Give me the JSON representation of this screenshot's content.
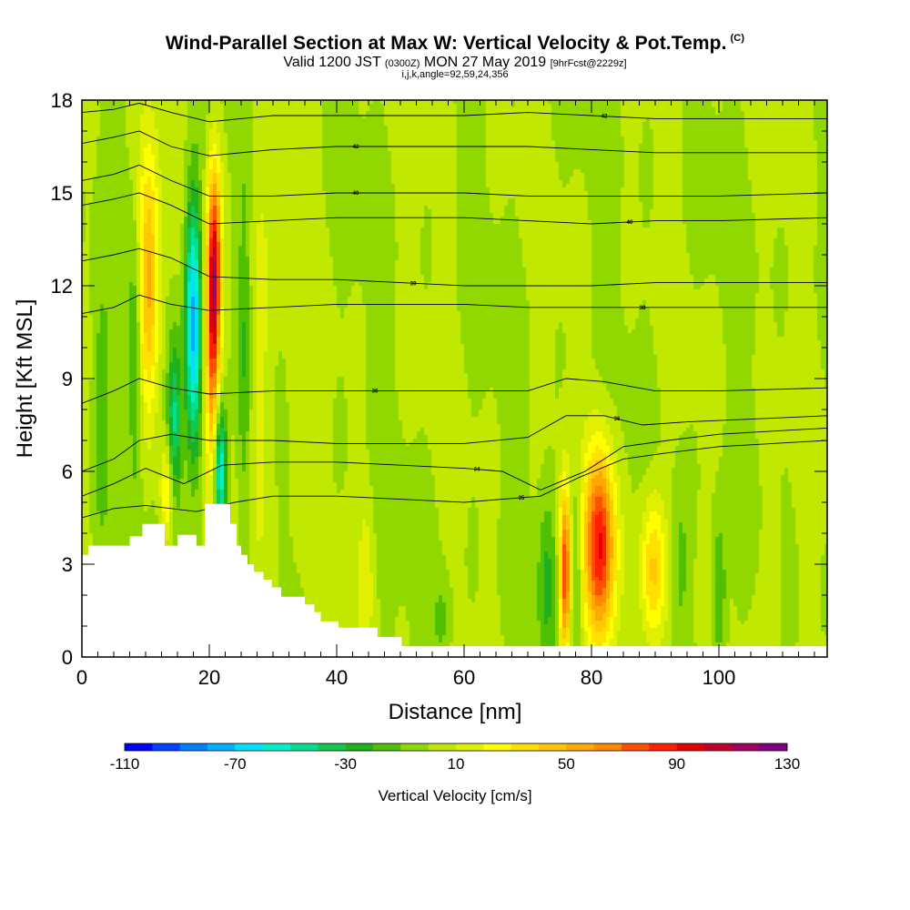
{
  "header": {
    "title": "Wind-Parallel Section at Max W: Vertical Velocity & Pot.Temp.",
    "title_unit": "(C)",
    "sub_valid": "Valid 1200 JST",
    "sub_utc": "(0300Z)",
    "sub_date": "MON 27 May 2019",
    "sub_fcst": "[9hrFcst@2229z]",
    "ijk": "i,j,k,angle=92,59,24,356"
  },
  "chart_data": {
    "type": "heatmap",
    "title": "Wind-Parallel Section at Max W: Vertical Velocity & Pot.Temp.",
    "xlabel": "Distance [nm]",
    "ylabel": "Height [Kft MSL]",
    "xlim": [
      0,
      117
    ],
    "ylim": [
      0,
      18
    ],
    "x_ticks": [
      0,
      20,
      40,
      60,
      80,
      100
    ],
    "y_ticks": [
      0,
      3,
      6,
      9,
      12,
      15,
      18
    ],
    "x_tick_labels": [
      "0",
      "20",
      "40",
      "60",
      "80",
      "100"
    ],
    "y_tick_labels": [
      "0",
      "3",
      "6",
      "9",
      "12",
      "15",
      "18"
    ],
    "colorbar": {
      "title": "Vertical Velocity [cm/s]",
      "min": -110,
      "max": 130,
      "step": 10,
      "tick_values": [
        -110,
        -70,
        -30,
        10,
        50,
        90,
        130
      ],
      "tick_labels": [
        "-110",
        "-70",
        "-30",
        "10",
        "50",
        "90",
        "130"
      ],
      "colors": [
        "#0000ff",
        "#0040ff",
        "#0080ff",
        "#00b0ff",
        "#00e0ff",
        "#00f0c8",
        "#00e090",
        "#10c850",
        "#20b020",
        "#50c000",
        "#90d800",
        "#c0e800",
        "#e0f000",
        "#ffff00",
        "#ffe000",
        "#ffc800",
        "#ffa800",
        "#ff8800",
        "#ff5000",
        "#ff2000",
        "#e00000",
        "#c00030",
        "#a00060",
        "#800080"
      ]
    },
    "background_value": 0,
    "updrafts": [
      {
        "x": 10.5,
        "y": 12.0,
        "sx": 1.2,
        "sy": 3.0,
        "value": 55
      },
      {
        "x": 20.8,
        "y": 12.5,
        "sx": 0.8,
        "sy": 2.4,
        "value": 95
      },
      {
        "x": 20.4,
        "y": 9.0,
        "sx": 0.7,
        "sy": 2.6,
        "value": 45
      },
      {
        "x": 13.4,
        "y": 5.2,
        "sx": 0.8,
        "sy": 1.2,
        "value": 35
      },
      {
        "x": 27.8,
        "y": 9.0,
        "sx": 1.2,
        "sy": 5.0,
        "value": 18
      },
      {
        "x": 75.9,
        "y": 2.7,
        "sx": 0.6,
        "sy": 1.9,
        "value": 85
      },
      {
        "x": 81.3,
        "y": 3.6,
        "sx": 1.7,
        "sy": 2.2,
        "value": 90
      },
      {
        "x": 89.7,
        "y": 2.8,
        "sx": 1.4,
        "sy": 1.7,
        "value": 45
      },
      {
        "x": 44.6,
        "y": 2.5,
        "sx": 0.8,
        "sy": 2.0,
        "value": 15
      },
      {
        "x": 33.5,
        "y": 9.5,
        "sx": 1.0,
        "sy": 4.5,
        "value": 8
      },
      {
        "x": 108.5,
        "y": 3.0,
        "sx": 1.3,
        "sy": 3.0,
        "value": 8
      }
    ],
    "downdrafts": [
      {
        "x": 17.5,
        "y": 10.8,
        "sx": 0.9,
        "sy": 3.0,
        "value": -75
      },
      {
        "x": 21.8,
        "y": 6.0,
        "sx": 0.7,
        "sy": 1.5,
        "value": -65
      },
      {
        "x": 14.6,
        "y": 7.5,
        "sx": 0.8,
        "sy": 2.0,
        "value": -45
      },
      {
        "x": 8.4,
        "y": 9.5,
        "sx": 0.7,
        "sy": 3.0,
        "value": -25
      },
      {
        "x": 3.0,
        "y": 7.5,
        "sx": 1.0,
        "sy": 3.0,
        "value": -22
      },
      {
        "x": 77.5,
        "y": 3.0,
        "sx": 0.8,
        "sy": 2.0,
        "value": -22
      },
      {
        "x": 73.0,
        "y": 2.5,
        "sx": 1.0,
        "sy": 2.0,
        "value": -22
      },
      {
        "x": 100.0,
        "y": 2.0,
        "sx": 0.8,
        "sy": 1.8,
        "value": -25
      },
      {
        "x": 94.0,
        "y": 3.0,
        "sx": 1.0,
        "sy": 2.0,
        "value": -15
      },
      {
        "x": 56.5,
        "y": 1.2,
        "sx": 1.0,
        "sy": 1.0,
        "value": -15
      },
      {
        "x": 25.5,
        "y": 10.0,
        "sx": 0.7,
        "sy": 4.0,
        "value": -18
      }
    ],
    "terrain": [
      [
        0,
        3.3
      ],
      [
        1,
        3.6
      ],
      [
        7.5,
        3.9
      ],
      [
        9.5,
        4.3
      ],
      [
        13,
        3.6
      ],
      [
        15,
        3.95
      ],
      [
        18,
        3.6
      ],
      [
        19.3,
        4.95
      ],
      [
        23.3,
        4.3
      ],
      [
        24.3,
        3.6
      ],
      [
        25,
        3.3
      ],
      [
        26,
        3.0
      ],
      [
        27,
        2.75
      ],
      [
        28.5,
        2.5
      ],
      [
        29.8,
        2.25
      ],
      [
        31.3,
        1.95
      ],
      [
        35,
        1.7
      ],
      [
        36.5,
        1.45
      ],
      [
        37.5,
        1.15
      ],
      [
        40.3,
        0.95
      ],
      [
        46.4,
        0.65
      ],
      [
        50.2,
        0.35
      ],
      [
        117,
        0.35
      ]
    ],
    "theta_contours": [
      {
        "label": "34",
        "label_x": 62,
        "points": [
          [
            0,
            5.2
          ],
          [
            5,
            5.6
          ],
          [
            10,
            6.1
          ],
          [
            16,
            5.6
          ],
          [
            22,
            6.2
          ],
          [
            30,
            6.3
          ],
          [
            40,
            6.3
          ],
          [
            50,
            6.2
          ],
          [
            60,
            6.1
          ],
          [
            66,
            6.0
          ],
          [
            72,
            5.4
          ],
          [
            79,
            6.0
          ],
          [
            85,
            6.8
          ],
          [
            92,
            7.0
          ],
          [
            100,
            7.2
          ],
          [
            117,
            7.4
          ]
        ]
      },
      {
        "label": "35",
        "label_x": 69,
        "points": [
          [
            0,
            4.5
          ],
          [
            5,
            4.8
          ],
          [
            10,
            4.9
          ],
          [
            18,
            4.7
          ],
          [
            24,
            5.0
          ],
          [
            30,
            5.2
          ],
          [
            40,
            5.2
          ],
          [
            50,
            5.1
          ],
          [
            60,
            5.0
          ],
          [
            66,
            5.1
          ],
          [
            72,
            5.2
          ],
          [
            78,
            5.8
          ],
          [
            85,
            6.4
          ],
          [
            92,
            6.6
          ],
          [
            100,
            6.8
          ],
          [
            117,
            7.0
          ]
        ]
      },
      {
        "label": "36",
        "label_x": 84,
        "points": [
          [
            0,
            6.0
          ],
          [
            5,
            6.4
          ],
          [
            9,
            7.0
          ],
          [
            14,
            7.2
          ],
          [
            20,
            7.0
          ],
          [
            30,
            7.0
          ],
          [
            40,
            6.9
          ],
          [
            50,
            6.9
          ],
          [
            60,
            6.9
          ],
          [
            70,
            7.1
          ],
          [
            76,
            7.8
          ],
          [
            82,
            7.8
          ],
          [
            88,
            7.5
          ],
          [
            95,
            7.6
          ],
          [
            117,
            7.8
          ]
        ]
      },
      {
        "label": "36",
        "label_x": 46,
        "points": [
          [
            0,
            8.2
          ],
          [
            5,
            8.6
          ],
          [
            9,
            9.0
          ],
          [
            14,
            8.7
          ],
          [
            20,
            8.5
          ],
          [
            30,
            8.6
          ],
          [
            40,
            8.6
          ],
          [
            50,
            8.6
          ],
          [
            60,
            8.6
          ],
          [
            70,
            8.6
          ],
          [
            76,
            9.0
          ],
          [
            82,
            8.9
          ],
          [
            90,
            8.6
          ],
          [
            100,
            8.6
          ],
          [
            117,
            8.7
          ]
        ]
      },
      {
        "label": "38",
        "label_x": 88,
        "points": [
          [
            0,
            11.1
          ],
          [
            5,
            11.3
          ],
          [
            9,
            11.7
          ],
          [
            14,
            11.4
          ],
          [
            20,
            11.2
          ],
          [
            30,
            11.3
          ],
          [
            40,
            11.4
          ],
          [
            50,
            11.4
          ],
          [
            60,
            11.4
          ],
          [
            70,
            11.3
          ],
          [
            80,
            11.3
          ],
          [
            90,
            11.3
          ],
          [
            100,
            11.3
          ],
          [
            117,
            11.3
          ]
        ]
      },
      {
        "label": "39",
        "label_x": 52,
        "points": [
          [
            0,
            12.8
          ],
          [
            5,
            13.0
          ],
          [
            9,
            13.2
          ],
          [
            14,
            12.9
          ],
          [
            20,
            12.3
          ],
          [
            30,
            12.2
          ],
          [
            40,
            12.2
          ],
          [
            50,
            12.1
          ],
          [
            60,
            12.0
          ],
          [
            70,
            12.0
          ],
          [
            80,
            12.0
          ],
          [
            90,
            12.1
          ],
          [
            100,
            12.1
          ],
          [
            117,
            12.1
          ]
        ]
      },
      {
        "label": "40",
        "label_x": 86,
        "points": [
          [
            0,
            14.6
          ],
          [
            5,
            14.8
          ],
          [
            9,
            15.0
          ],
          [
            14,
            14.6
          ],
          [
            20,
            14.0
          ],
          [
            30,
            14.1
          ],
          [
            40,
            14.2
          ],
          [
            50,
            14.2
          ],
          [
            60,
            14.2
          ],
          [
            70,
            14.1
          ],
          [
            80,
            14.0
          ],
          [
            90,
            14.1
          ],
          [
            100,
            14.1
          ],
          [
            117,
            14.2
          ]
        ]
      },
      {
        "label": "40",
        "label_x": 43,
        "points": [
          [
            0,
            15.4
          ],
          [
            5,
            15.6
          ],
          [
            9,
            15.9
          ],
          [
            14,
            15.4
          ],
          [
            20,
            14.9
          ],
          [
            30,
            14.9
          ],
          [
            40,
            15.0
          ],
          [
            50,
            15.0
          ],
          [
            60,
            15.0
          ],
          [
            70,
            14.9
          ],
          [
            80,
            14.9
          ],
          [
            90,
            14.9
          ],
          [
            100,
            14.9
          ],
          [
            117,
            15.0
          ]
        ]
      },
      {
        "label": "42",
        "label_x": 43,
        "points": [
          [
            0,
            16.6
          ],
          [
            5,
            16.8
          ],
          [
            9,
            17.0
          ],
          [
            14,
            16.5
          ],
          [
            20,
            16.2
          ],
          [
            30,
            16.4
          ],
          [
            40,
            16.5
          ],
          [
            50,
            16.5
          ],
          [
            60,
            16.5
          ],
          [
            70,
            16.5
          ],
          [
            80,
            16.4
          ],
          [
            90,
            16.3
          ],
          [
            100,
            16.3
          ],
          [
            117,
            16.3
          ]
        ]
      },
      {
        "label": "42",
        "label_x": 82,
        "points": [
          [
            0,
            17.6
          ],
          [
            5,
            17.7
          ],
          [
            9,
            17.9
          ],
          [
            14,
            17.6
          ],
          [
            20,
            17.3
          ],
          [
            30,
            17.5
          ],
          [
            40,
            17.5
          ],
          [
            50,
            17.5
          ],
          [
            60,
            17.5
          ],
          [
            70,
            17.6
          ],
          [
            80,
            17.5
          ],
          [
            90,
            17.4
          ],
          [
            100,
            17.4
          ],
          [
            117,
            17.4
          ]
        ]
      }
    ]
  }
}
